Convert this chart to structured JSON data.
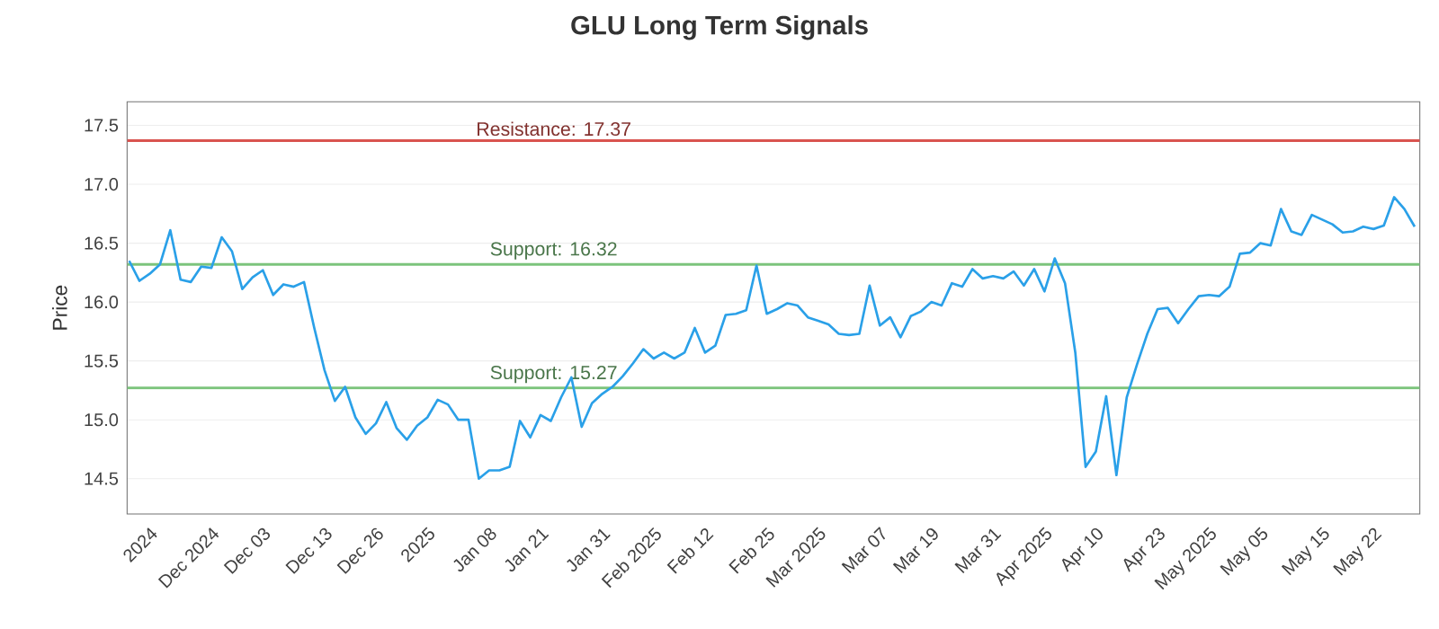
{
  "chart_data": {
    "type": "line",
    "title": "GLU Long Term Signals",
    "ylabel": "Price",
    "categories": [
      null,
      null,
      "2024",
      null,
      null,
      null,
      null,
      null,
      "Dec 2024",
      null,
      null,
      null,
      null,
      "Dec 03",
      null,
      null,
      null,
      null,
      null,
      "Dec 13",
      null,
      null,
      null,
      null,
      "Dec 26",
      null,
      null,
      null,
      null,
      "2025",
      null,
      null,
      null,
      null,
      null,
      "Jan 08",
      null,
      null,
      null,
      null,
      "Jan 21",
      null,
      null,
      null,
      null,
      null,
      "Jan 31",
      null,
      null,
      null,
      null,
      "Feb 2025",
      null,
      null,
      null,
      null,
      "Feb 12",
      null,
      null,
      null,
      null,
      null,
      "Feb 25",
      null,
      null,
      null,
      null,
      "Mar 2025",
      null,
      null,
      null,
      null,
      null,
      "Mar 07",
      null,
      null,
      null,
      null,
      "Mar 19",
      null,
      null,
      null,
      null,
      null,
      "Mar 31",
      null,
      null,
      null,
      null,
      "Apr 2025",
      null,
      null,
      null,
      null,
      "Apr 10",
      null,
      null,
      null,
      null,
      null,
      "Apr 23",
      null,
      null,
      null,
      null,
      "May 2025",
      null,
      null,
      null,
      null,
      "May 05",
      null,
      null,
      null,
      null,
      null,
      "May 15",
      null,
      null,
      null,
      null,
      "May 22",
      null,
      null,
      null,
      null
    ],
    "values": [
      16.35,
      16.18,
      16.24,
      16.32,
      16.61,
      16.19,
      16.17,
      16.3,
      16.29,
      16.55,
      16.43,
      16.11,
      16.21,
      16.27,
      16.06,
      16.15,
      16.13,
      16.17,
      15.78,
      15.42,
      15.16,
      15.28,
      15.02,
      14.88,
      14.97,
      15.15,
      14.93,
      14.83,
      14.95,
      15.02,
      15.17,
      15.13,
      15.0,
      15.0,
      14.5,
      14.57,
      14.57,
      14.6,
      14.99,
      14.85,
      15.04,
      14.99,
      15.19,
      15.36,
      14.94,
      15.14,
      15.22,
      15.28,
      15.37,
      15.48,
      15.6,
      15.52,
      15.57,
      15.52,
      15.57,
      15.78,
      15.57,
      15.63,
      15.89,
      15.9,
      15.93,
      16.31,
      15.9,
      15.94,
      15.99,
      15.97,
      15.87,
      15.84,
      15.81,
      15.73,
      15.72,
      15.73,
      16.14,
      15.8,
      15.87,
      15.7,
      15.88,
      15.92,
      16.0,
      15.97,
      16.16,
      16.13,
      16.28,
      16.2,
      16.22,
      16.2,
      16.26,
      16.14,
      16.28,
      16.09,
      16.37,
      16.16,
      15.57,
      14.6,
      14.73,
      15.2,
      14.53,
      15.19,
      15.47,
      15.73,
      15.94,
      15.95,
      15.82,
      15.94,
      16.05,
      16.06,
      16.05,
      16.13,
      16.41,
      16.42,
      16.5,
      16.48,
      16.79,
      16.6,
      16.57,
      16.74,
      16.7,
      16.66,
      16.59,
      16.6,
      16.64,
      16.62,
      16.65,
      16.89,
      16.79,
      16.64
    ],
    "color": "#2aa0e8",
    "ylim": [
      14.2,
      17.7
    ],
    "yticks": [
      14.5,
      {
        "value": 15,
        "label": "15.0"
      },
      15.5,
      {
        "value": 16,
        "label": "16.0"
      },
      16.5,
      {
        "value": 17,
        "label": "17.0"
      },
      17.5
    ],
    "grid": "y",
    "ref_lines": [
      {
        "axis": "y",
        "value": 17.37,
        "label": "Resistance: 17.37",
        "color": "#d9534f"
      },
      {
        "axis": "y",
        "value": 16.32,
        "label": "Support: 16.32",
        "color": "#7cc47c"
      },
      {
        "axis": "y",
        "value": 15.27,
        "label": "Support: 15.27",
        "color": "#7cc47c"
      }
    ]
  }
}
